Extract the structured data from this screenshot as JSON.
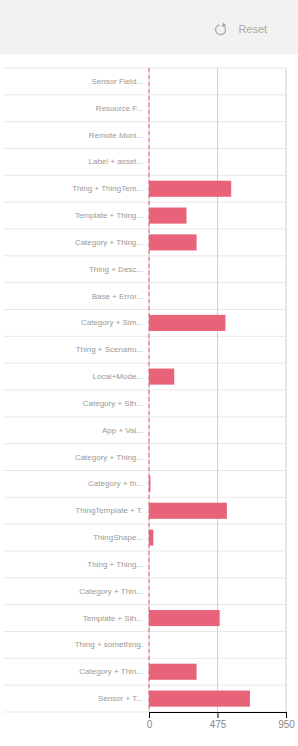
{
  "chart_data": {
    "type": "bar",
    "orientation": "horizontal",
    "annotations": [
      "Reset"
    ],
    "categories": [
      "Sensor Field...",
      "Resource F...",
      "Remote Moni...",
      "Label + asset...",
      "Thing + ThingTem...",
      "Template + Thing...",
      "Category + Thing...",
      "Thing + Desc...",
      "Base + Error...",
      "Category + Sim...",
      "Thing + Scenario...",
      "Local+Mode...",
      "Category + Sth...",
      "App + Val...",
      "Category + Thing...",
      "Category + th...",
      "ThingTemplate + T.",
      "ThingShape...",
      "Thing + Thing...",
      "Category + Thin...",
      "Template + Sth...",
      "Thing + something.",
      "Category + Thin...",
      "Sensor + T..."
    ],
    "values": [
      0,
      0,
      0,
      0,
      570,
      260,
      330,
      0,
      0,
      530,
      0,
      175,
      0,
      0,
      0,
      10,
      540,
      30,
      0,
      0,
      490,
      0,
      330,
      700
    ],
    "color": "#e8637a",
    "xlim": [
      0,
      950
    ],
    "xticks": [
      0,
      475,
      950
    ],
    "grid": true
  }
}
